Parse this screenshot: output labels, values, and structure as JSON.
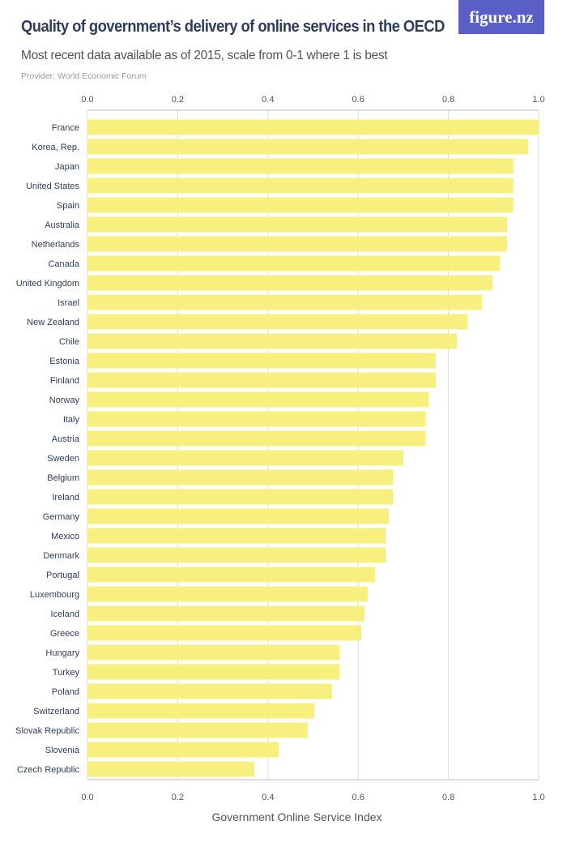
{
  "header": {
    "title": "Quality of government’s delivery of online services in the OECD",
    "subtitle": "Most recent data available as of 2015, scale from 0-1 where 1 is best",
    "provider": "Provider: World Economic Forum",
    "logo": "figure.nz"
  },
  "chart_data": {
    "type": "bar",
    "orientation": "horizontal",
    "xlabel": "Government Online Service Index",
    "xlim": [
      0,
      1
    ],
    "ticks": [
      "0.0",
      "0.2",
      "0.4",
      "0.6",
      "0.8",
      "1.0"
    ],
    "grid": true,
    "bar_color": "#f8f07e",
    "categories": [
      "France",
      "Korea, Rep.",
      "Japan",
      "United States",
      "Spain",
      "Australia",
      "Netherlands",
      "Canada",
      "United Kingdom",
      "Israel",
      "New Zealand",
      "Chile",
      "Estonia",
      "Finland",
      "Norway",
      "Italy",
      "Austria",
      "Sweden",
      "Belgium",
      "Ireland",
      "Germany",
      "Mexico",
      "Denmark",
      "Portugal",
      "Luxembourg",
      "Iceland",
      "Greece",
      "Hungary",
      "Turkey",
      "Poland",
      "Switzerland",
      "Slovak Republic",
      "Slovenia",
      "Czech Republic"
    ],
    "values": [
      1.0,
      0.977,
      0.944,
      0.944,
      0.944,
      0.93,
      0.93,
      0.914,
      0.898,
      0.874,
      0.842,
      0.819,
      0.772,
      0.772,
      0.756,
      0.749,
      0.749,
      0.7,
      0.677,
      0.677,
      0.668,
      0.661,
      0.661,
      0.637,
      0.621,
      0.614,
      0.607,
      0.559,
      0.559,
      0.542,
      0.503,
      0.488,
      0.424,
      0.37
    ]
  }
}
